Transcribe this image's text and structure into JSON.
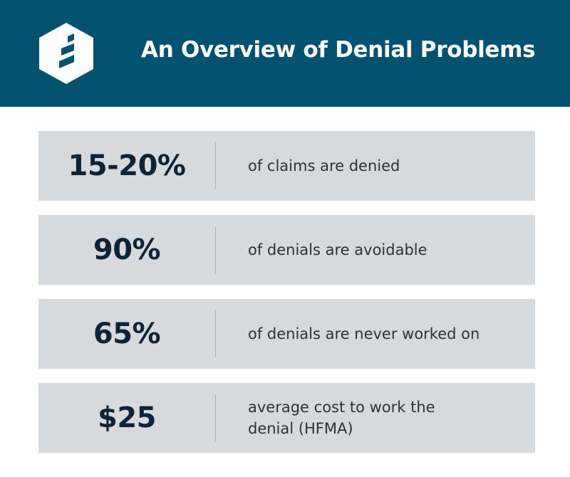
{
  "header": {
    "title": "An Overview of Denial Problems",
    "logo_icon": "lighthouse-logo-icon",
    "background_color": "#03526f"
  },
  "stats": [
    {
      "value": "15-20%",
      "text": "of claims are denied"
    },
    {
      "value": "90%",
      "text": "of denials are avoidable"
    },
    {
      "value": "65%",
      "text": "of denials are never worked on"
    },
    {
      "value": "$25",
      "text": "average cost to work the denial (HFMA)"
    }
  ],
  "colors": {
    "card_background": "#d6dadd",
    "value_text": "#0f2337",
    "body_text": "#2b3138"
  }
}
